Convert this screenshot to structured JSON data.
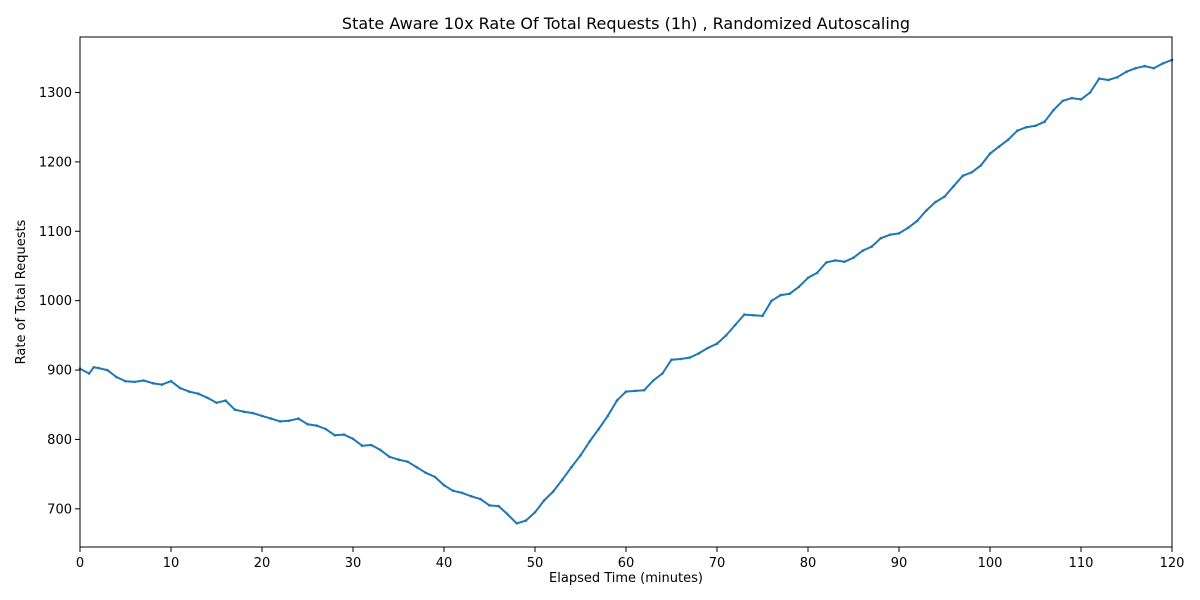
{
  "chart_data": {
    "type": "line",
    "title": "State Aware 10x Rate Of Total Requests (1h) , Randomized Autoscaling",
    "xlabel": "Elapsed Time (minutes)",
    "ylabel": "Rate of Total Requests",
    "xlim": [
      0,
      120
    ],
    "ylim": [
      645,
      1380
    ],
    "xticks": [
      0,
      10,
      20,
      30,
      40,
      50,
      60,
      70,
      80,
      90,
      100,
      110,
      120
    ],
    "yticks": [
      700,
      800,
      900,
      1000,
      1100,
      1200,
      1300
    ],
    "grid": false,
    "legend": "none",
    "series": [
      {
        "color": "#1f77b4",
        "x": [
          0,
          1,
          1.5,
          2,
          3,
          4,
          5,
          6,
          7,
          8,
          9,
          10,
          11,
          12,
          13,
          14,
          15,
          16,
          17,
          18,
          19,
          20,
          21,
          22,
          23,
          24,
          25,
          26,
          27,
          28,
          29,
          30,
          31,
          32,
          33,
          34,
          35,
          36,
          37,
          38,
          39,
          40,
          41,
          42,
          43,
          44,
          45,
          46,
          47,
          48,
          49,
          50,
          51,
          52,
          53,
          54,
          55,
          56,
          57,
          58,
          59,
          60,
          61,
          62,
          63,
          64,
          65,
          66,
          67,
          68,
          69,
          70,
          71,
          72,
          73,
          74,
          75,
          76,
          77,
          78,
          79,
          80,
          81,
          82,
          83,
          84,
          85,
          86,
          87,
          88,
          89,
          90,
          91,
          92,
          93,
          94,
          95,
          96,
          97,
          98,
          99,
          100,
          101,
          102,
          103,
          104,
          105,
          106,
          107,
          108,
          109,
          110,
          111,
          112,
          113,
          114,
          115,
          116,
          117,
          118,
          119,
          120
        ],
        "y": [
          902,
          895,
          904,
          903,
          900,
          890,
          884,
          883,
          885,
          881,
          879,
          884,
          874,
          869,
          866,
          860,
          853,
          856,
          843,
          840,
          838,
          834,
          830,
          826,
          827,
          830,
          822,
          820,
          815,
          806,
          807,
          801,
          791,
          792,
          785,
          775,
          771,
          768,
          760,
          752,
          746,
          734,
          726,
          723,
          718,
          714,
          705,
          704,
          692,
          679,
          683,
          695,
          712,
          725,
          742,
          760,
          777,
          797,
          815,
          834,
          856,
          869,
          870,
          871,
          885,
          895,
          915,
          916,
          918,
          924,
          932,
          938,
          950,
          965,
          980,
          979,
          978,
          1000,
          1008,
          1010,
          1020,
          1033,
          1040,
          1055,
          1058,
          1056,
          1062,
          1072,
          1078,
          1090,
          1095,
          1097,
          1105,
          1115,
          1130,
          1142,
          1150,
          1165,
          1180,
          1185,
          1195,
          1212,
          1222,
          1232,
          1245,
          1250,
          1252,
          1258,
          1275,
          1288,
          1292,
          1290,
          1300,
          1320,
          1318,
          1322,
          1330,
          1335,
          1338,
          1335,
          1342,
          1347
        ]
      }
    ]
  }
}
